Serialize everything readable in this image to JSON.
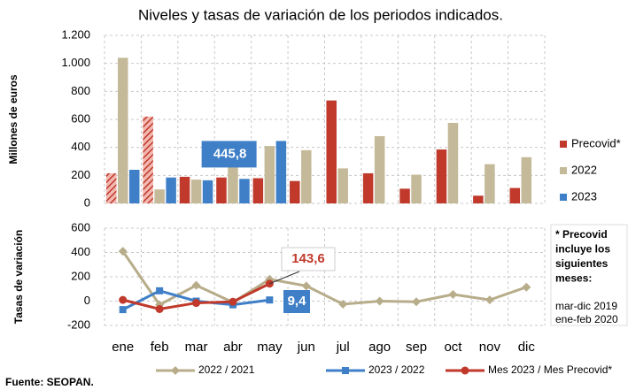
{
  "title": "Niveles y tasas de variación de los periodos indicados.",
  "source": "Fuente: SEOPAN.",
  "note": {
    "heading": "* Precovid incluye los siguientes meses:",
    "lines": [
      "mar-dic 2019",
      "ene-feb 2020"
    ]
  },
  "chart_data": [
    {
      "type": "bar",
      "y_label": "Millones de euros",
      "ylim": [
        0,
        1200
      ],
      "yticks": [
        0,
        200,
        400,
        600,
        800,
        {
          "value": 1000,
          "label": "1.000"
        },
        {
          "value": 1200,
          "label": "1.200"
        }
      ],
      "grid": true,
      "legend": "right",
      "series": [
        {
          "name": "Precovid*",
          "color": "#c0392b",
          "hatched_points": [
            0,
            1
          ],
          "values": [
            215,
            620,
            190,
            185,
            180,
            160,
            735,
            215,
            105,
            385,
            55,
            110
          ]
        },
        {
          "name": "2022",
          "color": "#c4b998",
          "values": [
            1040,
            100,
            170,
            260,
            410,
            380,
            250,
            480,
            205,
            575,
            280,
            330
          ]
        },
        {
          "name": "2023",
          "color": "#3f7fc7",
          "values": [
            240,
            185,
            165,
            175,
            445.8,
            null,
            null,
            null,
            null,
            null,
            null,
            null
          ],
          "value_labels": [
            null,
            null,
            null,
            null,
            "445,8",
            null,
            null,
            null,
            null,
            null,
            null,
            null
          ]
        }
      ]
    },
    {
      "type": "line",
      "y_label": "Tasas de variación",
      "categories": [
        "ene",
        "feb",
        "mar",
        "abr",
        "may",
        "jun",
        "jul",
        "ago",
        "sep",
        "oct",
        "nov",
        "dic"
      ],
      "ylim": [
        -200,
        600
      ],
      "yticks": [
        -200,
        0,
        200,
        400,
        600
      ],
      "grid": true,
      "legend": "bottom",
      "series": [
        {
          "name": "2022 / 2021",
          "color": "#b8ad8a",
          "marker": "diamond",
          "values": [
            410,
            -30,
            130,
            -10,
            180,
            125,
            -25,
            0,
            -5,
            55,
            10,
            115
          ]
        },
        {
          "name": "2023 / 2022",
          "color": "#3f7fc7",
          "marker": "square",
          "values": [
            -70,
            85,
            0,
            -30,
            9.4,
            null,
            null,
            null,
            null,
            null,
            null,
            null
          ],
          "value_labels": [
            null,
            null,
            null,
            null,
            "9,4",
            null,
            null,
            null,
            null,
            null,
            null,
            null
          ]
        },
        {
          "name": "Mes 2023 / Mes Precovid*",
          "color": "#c0392b",
          "marker": "circle",
          "values": [
            10,
            -65,
            -15,
            -5,
            143.6,
            null,
            null,
            null,
            null,
            null,
            null,
            null
          ],
          "value_labels": [
            null,
            null,
            null,
            null,
            "143,6",
            null,
            null,
            null,
            null,
            null,
            null,
            null
          ]
        }
      ]
    }
  ]
}
